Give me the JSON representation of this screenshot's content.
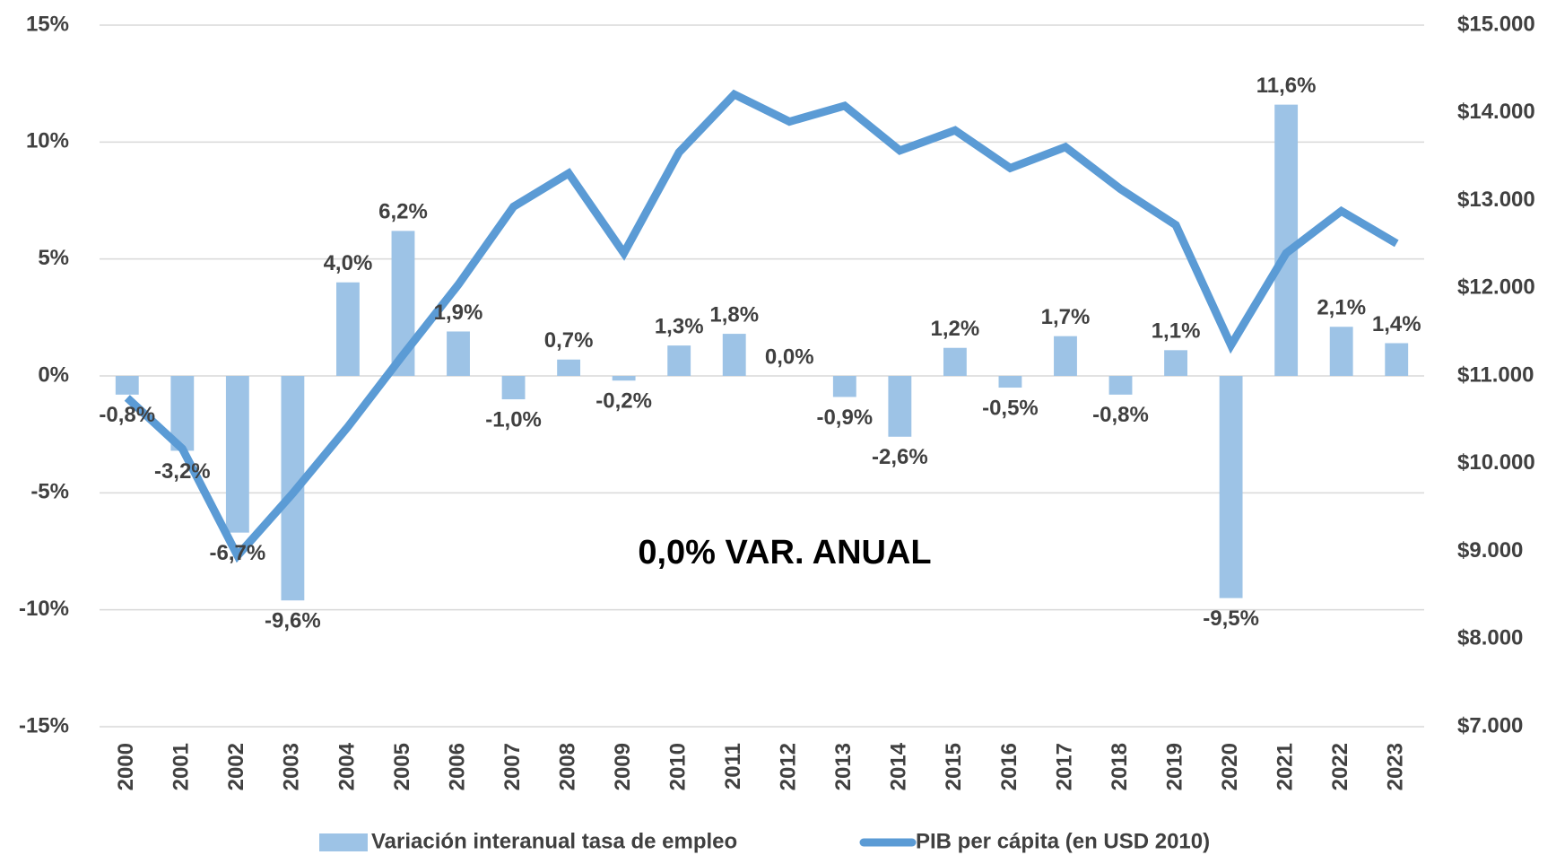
{
  "chart_data": {
    "type": "bar-line",
    "categories": [
      "2000",
      "2001",
      "2002",
      "2003",
      "2004",
      "2005",
      "2006",
      "2007",
      "2008",
      "2009",
      "2010",
      "2011",
      "2012",
      "2013",
      "2014",
      "2015",
      "2016",
      "2017",
      "2018",
      "2019",
      "2020",
      "2021",
      "2022",
      "2023"
    ],
    "series": [
      {
        "name": "Variación interanual tasa de empleo",
        "type": "bar",
        "color": "#9dc3e6",
        "axis": "y",
        "values": [
          -0.8,
          -3.2,
          -6.7,
          -9.6,
          4.0,
          6.2,
          1.9,
          -1.0,
          0.7,
          -0.2,
          1.3,
          1.8,
          0.0,
          -0.9,
          -2.6,
          1.2,
          -0.5,
          1.7,
          -0.8,
          1.1,
          -9.5,
          11.6,
          2.1,
          1.4
        ],
        "value_labels": [
          "-0,8%",
          "-3,2%",
          "-6,7%",
          "-9,6%",
          "4,0%",
          "6,2%",
          "1,9%",
          "-1,0%",
          "0,7%",
          "-0,2%",
          "1,3%",
          "1,8%",
          "0,0%",
          "-0,9%",
          "-2,6%",
          "1,2%",
          "-0,5%",
          "1,7%",
          "-0,8%",
          "1,1%",
          "-9,5%",
          "11,6%",
          "2,1%",
          "1,4%"
        ]
      },
      {
        "name": "PIB per cápita (en USD 2010)",
        "type": "line",
        "color": "#5b9bd5",
        "axis": "y2",
        "values": [
          10750,
          10170,
          8950,
          9660,
          10420,
          11240,
          12040,
          12930,
          13310,
          12400,
          13550,
          14210,
          13900,
          14080,
          13570,
          13800,
          13370,
          13610,
          13130,
          12720,
          11350,
          12400,
          12880,
          12510
        ]
      }
    ],
    "ylim": [
      -15,
      15
    ],
    "yticks": [
      {
        "value": -15,
        "label": "-15%"
      },
      {
        "value": -10,
        "label": "-10%"
      },
      {
        "value": -5,
        "label": "-5%"
      },
      {
        "value": 0,
        "label": "0%"
      },
      {
        "value": 5,
        "label": "5%"
      },
      {
        "value": 10,
        "label": "10%"
      },
      {
        "value": 15,
        "label": "15%"
      }
    ],
    "y2lim": [
      7000,
      15000
    ],
    "y2ticks": [
      {
        "value": 7000,
        "label": "$7.000"
      },
      {
        "value": 8000,
        "label": "$8.000"
      },
      {
        "value": 9000,
        "label": "$9.000"
      },
      {
        "value": 10000,
        "label": "$10.000"
      },
      {
        "value": 11000,
        "label": "$11.000"
      },
      {
        "value": 12000,
        "label": "$12.000"
      },
      {
        "value": 13000,
        "label": "$13.000"
      },
      {
        "value": 14000,
        "label": "$14.000"
      },
      {
        "value": 15000,
        "label": "$15.000"
      }
    ],
    "annotation": "0,0% VAR. ANUAL",
    "grid": true,
    "legend": "bottom"
  }
}
